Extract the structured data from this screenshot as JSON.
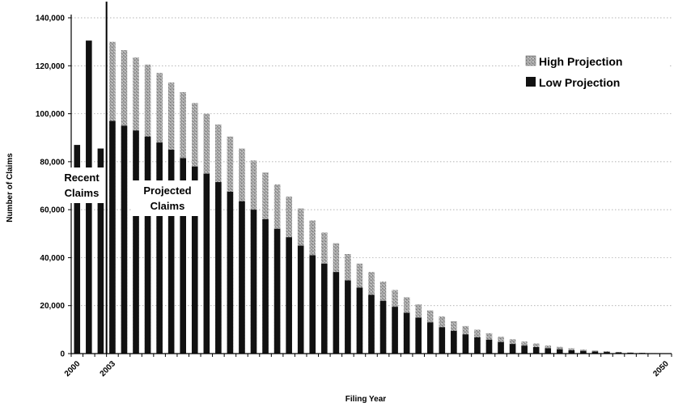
{
  "chart_data": {
    "type": "bar",
    "xlabel": "Filing Year",
    "ylabel": "Number of Claims",
    "ylim": [
      0,
      140000
    ],
    "y_ticks": [
      "0",
      "20,000",
      "40,000",
      "60,000",
      "80,000",
      "100,000",
      "120,000",
      "140,000"
    ],
    "x_tick_labels": [
      "2000",
      "2003",
      "2050"
    ],
    "grid": "horizontal dotted",
    "legend_position": "top-right",
    "legend": [
      {
        "name": "High Projection",
        "color": "#a6a6a6"
      },
      {
        "name": "Low Projection",
        "color": "#111111"
      }
    ],
    "annotations": [
      {
        "lines": [
          "Recent",
          "Claims"
        ]
      },
      {
        "lines": [
          "Projected",
          "Claims"
        ]
      }
    ],
    "x": [
      2000,
      2001,
      2002,
      2003,
      2004,
      2005,
      2006,
      2007,
      2008,
      2009,
      2010,
      2011,
      2012,
      2013,
      2014,
      2015,
      2016,
      2017,
      2018,
      2019,
      2020,
      2021,
      2022,
      2023,
      2024,
      2025,
      2026,
      2027,
      2028,
      2029,
      2030,
      2031,
      2032,
      2033,
      2034,
      2035,
      2036,
      2037,
      2038,
      2039,
      2040,
      2041,
      2042,
      2043,
      2044,
      2045,
      2046,
      2047,
      2048,
      2049,
      2050
    ],
    "series": [
      {
        "name": "Low Projection",
        "values": [
          87000,
          130500,
          85500,
          97000,
          95000,
          93000,
          90500,
          88000,
          85000,
          81500,
          78000,
          75000,
          71500,
          67500,
          63500,
          60000,
          56000,
          52000,
          48500,
          45000,
          41000,
          37500,
          34000,
          30500,
          27500,
          24500,
          22000,
          19500,
          17000,
          15000,
          13000,
          11000,
          9500,
          8000,
          6800,
          5800,
          4800,
          4000,
          3300,
          2700,
          2200,
          1800,
          1400,
          1100,
          850,
          650,
          500,
          350,
          250,
          150,
          100
        ]
      },
      {
        "name": "High Projection",
        "values": [
          null,
          null,
          null,
          130000,
          126500,
          123500,
          120500,
          117000,
          113000,
          109000,
          104500,
          100000,
          95500,
          90500,
          85500,
          80500,
          75500,
          70500,
          65500,
          60500,
          55500,
          50500,
          46000,
          41500,
          37500,
          34000,
          30000,
          26500,
          23500,
          20500,
          18000,
          15500,
          13500,
          11500,
          10000,
          8500,
          7000,
          6000,
          5000,
          4200,
          3400,
          2800,
          2200,
          1700,
          1300,
          1000,
          700,
          500,
          350,
          200,
          150
        ]
      }
    ]
  }
}
